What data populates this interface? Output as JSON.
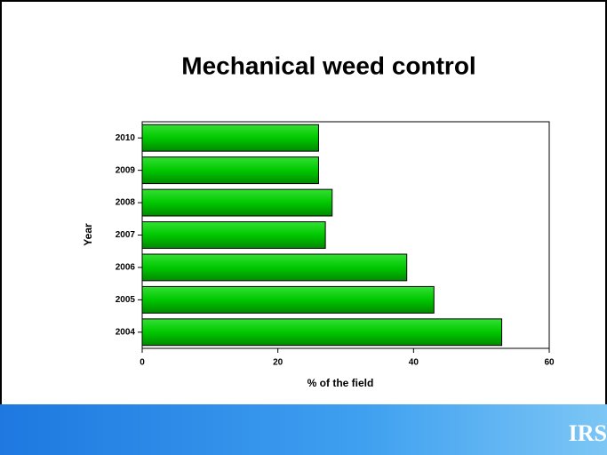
{
  "chart_data": {
    "type": "bar",
    "orientation": "horizontal",
    "title": "Mechanical weed control",
    "categories": [
      "2004",
      "2005",
      "2006",
      "2007",
      "2008",
      "2009",
      "2010"
    ],
    "values": [
      53,
      43,
      39,
      27,
      28,
      26,
      26
    ],
    "color": "#00c800",
    "xlim": [
      0,
      60
    ],
    "xticks": [
      0,
      20,
      40,
      60
    ],
    "xlabel": "% of the field",
    "ylabel": "Year",
    "grid": false
  },
  "footer": {
    "logo": "IRS"
  }
}
